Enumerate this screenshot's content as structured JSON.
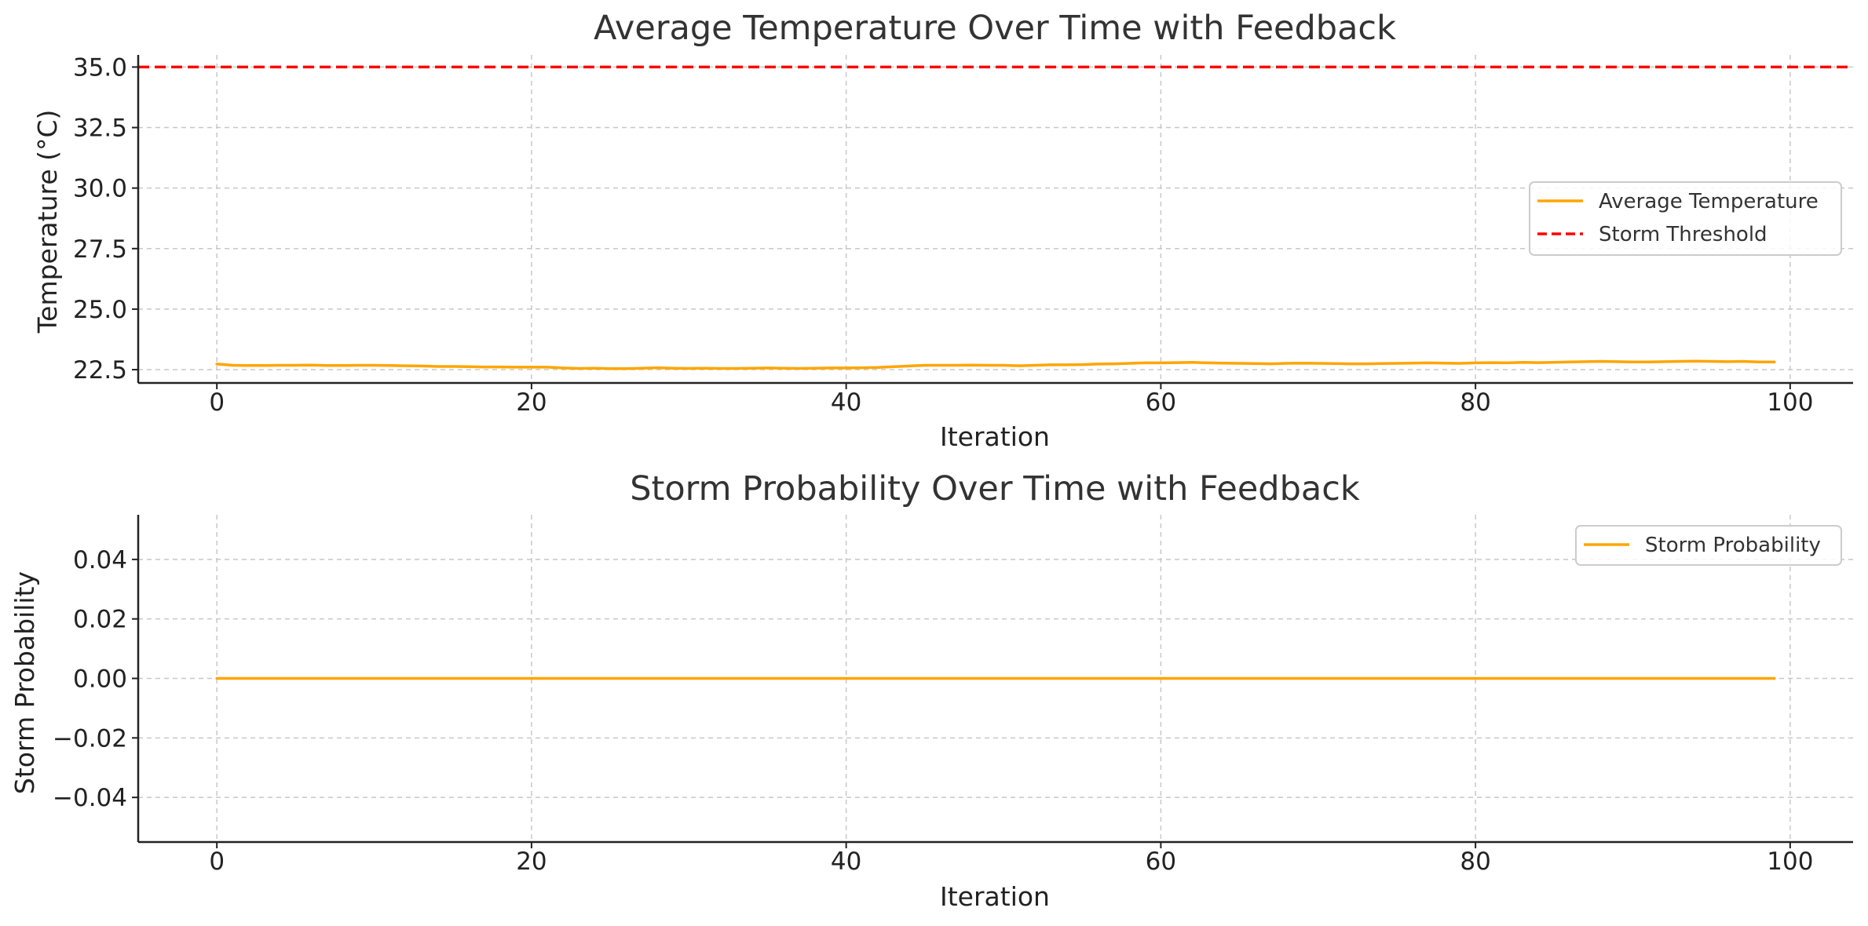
{
  "chart_data": [
    {
      "type": "line",
      "title": "Average Temperature Over Time with Feedback",
      "xlabel": "Iteration",
      "ylabel": "Temperature (°C)",
      "xlim": [
        -5,
        104
      ],
      "ylim": [
        21.95,
        35.5
      ],
      "xticks": [
        0,
        20,
        40,
        60,
        80,
        100
      ],
      "yticks": [
        22.5,
        25.0,
        27.5,
        30.0,
        32.5,
        35.0
      ],
      "ytick_labels": [
        "22.5",
        "25.0",
        "27.5",
        "30.0",
        "32.5",
        "35.0"
      ],
      "grid": true,
      "legend_position": "center-right",
      "series": [
        {
          "name": "Average Temperature",
          "color": "#FFA500",
          "style": "solid",
          "x": [
            0,
            1,
            2,
            3,
            4,
            5,
            6,
            7,
            8,
            9,
            10,
            11,
            12,
            13,
            14,
            15,
            16,
            17,
            18,
            19,
            20,
            21,
            22,
            23,
            24,
            25,
            26,
            27,
            28,
            29,
            30,
            31,
            32,
            33,
            34,
            35,
            36,
            37,
            38,
            39,
            40,
            41,
            42,
            43,
            44,
            45,
            46,
            47,
            48,
            49,
            50,
            51,
            52,
            53,
            54,
            55,
            56,
            57,
            58,
            59,
            60,
            61,
            62,
            63,
            64,
            65,
            66,
            67,
            68,
            69,
            70,
            71,
            72,
            73,
            74,
            75,
            76,
            77,
            78,
            79,
            80,
            81,
            82,
            83,
            84,
            85,
            86,
            87,
            88,
            89,
            90,
            91,
            92,
            93,
            94,
            95,
            96,
            97,
            98,
            99
          ],
          "y": [
            22.73,
            22.68,
            22.67,
            22.67,
            22.68,
            22.68,
            22.69,
            22.67,
            22.67,
            22.68,
            22.68,
            22.67,
            22.66,
            22.65,
            22.63,
            22.63,
            22.62,
            22.61,
            22.61,
            22.6,
            22.6,
            22.6,
            22.57,
            22.55,
            22.56,
            22.54,
            22.54,
            22.56,
            22.58,
            22.56,
            22.55,
            22.56,
            22.55,
            22.55,
            22.56,
            22.57,
            22.56,
            22.55,
            22.56,
            22.57,
            22.57,
            22.58,
            22.59,
            22.62,
            22.65,
            22.68,
            22.68,
            22.68,
            22.69,
            22.68,
            22.68,
            22.66,
            22.68,
            22.7,
            22.7,
            22.71,
            22.73,
            22.74,
            22.76,
            22.78,
            22.78,
            22.79,
            22.8,
            22.78,
            22.77,
            22.76,
            22.75,
            22.74,
            22.76,
            22.77,
            22.76,
            22.75,
            22.74,
            22.74,
            22.75,
            22.76,
            22.77,
            22.78,
            22.77,
            22.76,
            22.78,
            22.79,
            22.78,
            22.8,
            22.79,
            22.8,
            22.82,
            22.83,
            22.84,
            22.83,
            22.82,
            22.82,
            22.83,
            22.84,
            22.85,
            22.84,
            22.83,
            22.84,
            22.82,
            22.82
          ]
        },
        {
          "name": "Storm Threshold",
          "color": "#FF0000",
          "style": "dashed",
          "hline": 35.0
        }
      ]
    },
    {
      "type": "line",
      "title": "Storm Probability Over Time with Feedback",
      "xlabel": "Iteration",
      "ylabel": "Storm Probability",
      "xlim": [
        -5,
        104
      ],
      "ylim": [
        -0.055,
        0.055
      ],
      "xticks": [
        0,
        20,
        40,
        60,
        80,
        100
      ],
      "yticks": [
        -0.04,
        -0.02,
        0.0,
        0.02,
        0.04
      ],
      "ytick_labels": [
        "−0.04",
        "−0.02",
        "0.00",
        "0.02",
        "0.04"
      ],
      "grid": true,
      "legend_position": "top-right",
      "series": [
        {
          "name": "Storm Probability",
          "color": "#FFA500",
          "style": "solid",
          "x": [
            0,
            99
          ],
          "y": [
            0.0,
            0.0
          ]
        }
      ]
    }
  ]
}
